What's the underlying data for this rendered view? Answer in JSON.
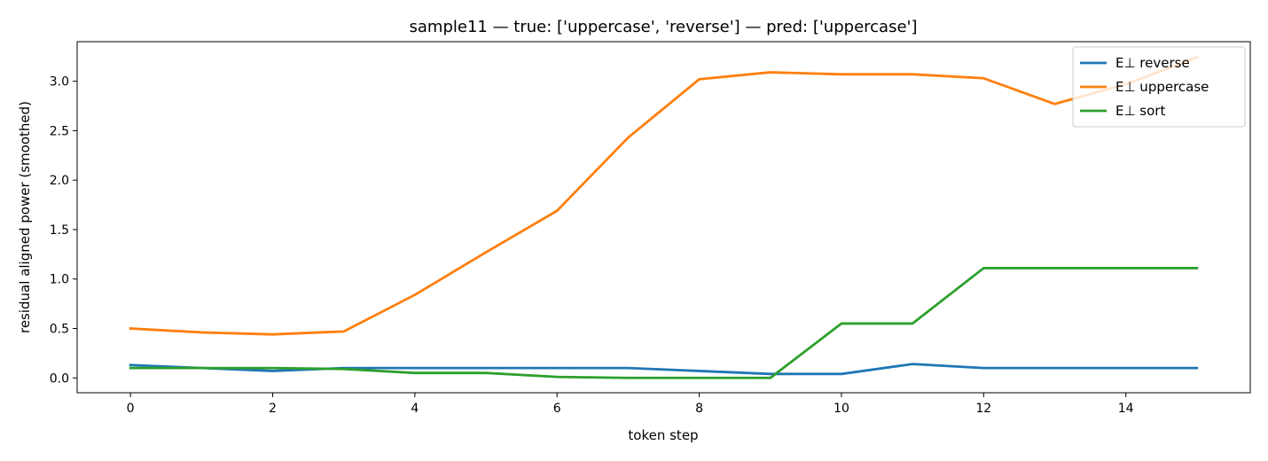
{
  "chart_data": {
    "type": "line",
    "title": "sample11 — true: ['uppercase', 'reverse'] — pred: ['uppercase']",
    "xlabel": "token step",
    "ylabel": "residual aligned power (smoothed)",
    "x": [
      0,
      1,
      2,
      3,
      4,
      5,
      6,
      7,
      8,
      9,
      10,
      11,
      12,
      13,
      14,
      15
    ],
    "xlim": [
      -0.75,
      15.75
    ],
    "ylim": [
      -0.15,
      3.4
    ],
    "xticks": [
      0,
      2,
      4,
      6,
      8,
      10,
      12,
      14
    ],
    "yticks": [
      0.0,
      0.5,
      1.0,
      1.5,
      2.0,
      2.5,
      3.0
    ],
    "ytick_labels": [
      "0.0",
      "0.5",
      "1.0",
      "1.5",
      "2.0",
      "2.5",
      "3.0"
    ],
    "grid": false,
    "legend": "top-right",
    "series": [
      {
        "name": "E⊥ reverse",
        "color": "#1f77b4",
        "values": [
          0.13,
          0.1,
          0.07,
          0.1,
          0.1,
          0.1,
          0.1,
          0.1,
          0.07,
          0.04,
          0.04,
          0.14,
          0.1,
          0.1,
          0.1,
          0.1
        ]
      },
      {
        "name": "E⊥ uppercase",
        "color": "#ff7f0e",
        "values": [
          0.5,
          0.46,
          0.44,
          0.47,
          0.84,
          1.27,
          1.69,
          2.43,
          3.02,
          3.09,
          3.07,
          3.07,
          3.03,
          2.77,
          2.97,
          3.24
        ]
      },
      {
        "name": "E⊥ sort",
        "color": "#2ca02c",
        "values": [
          0.1,
          0.1,
          0.1,
          0.09,
          0.05,
          0.05,
          0.01,
          0.0,
          0.0,
          0.0,
          0.55,
          0.55,
          1.11,
          1.11,
          1.11,
          1.11
        ]
      }
    ]
  }
}
